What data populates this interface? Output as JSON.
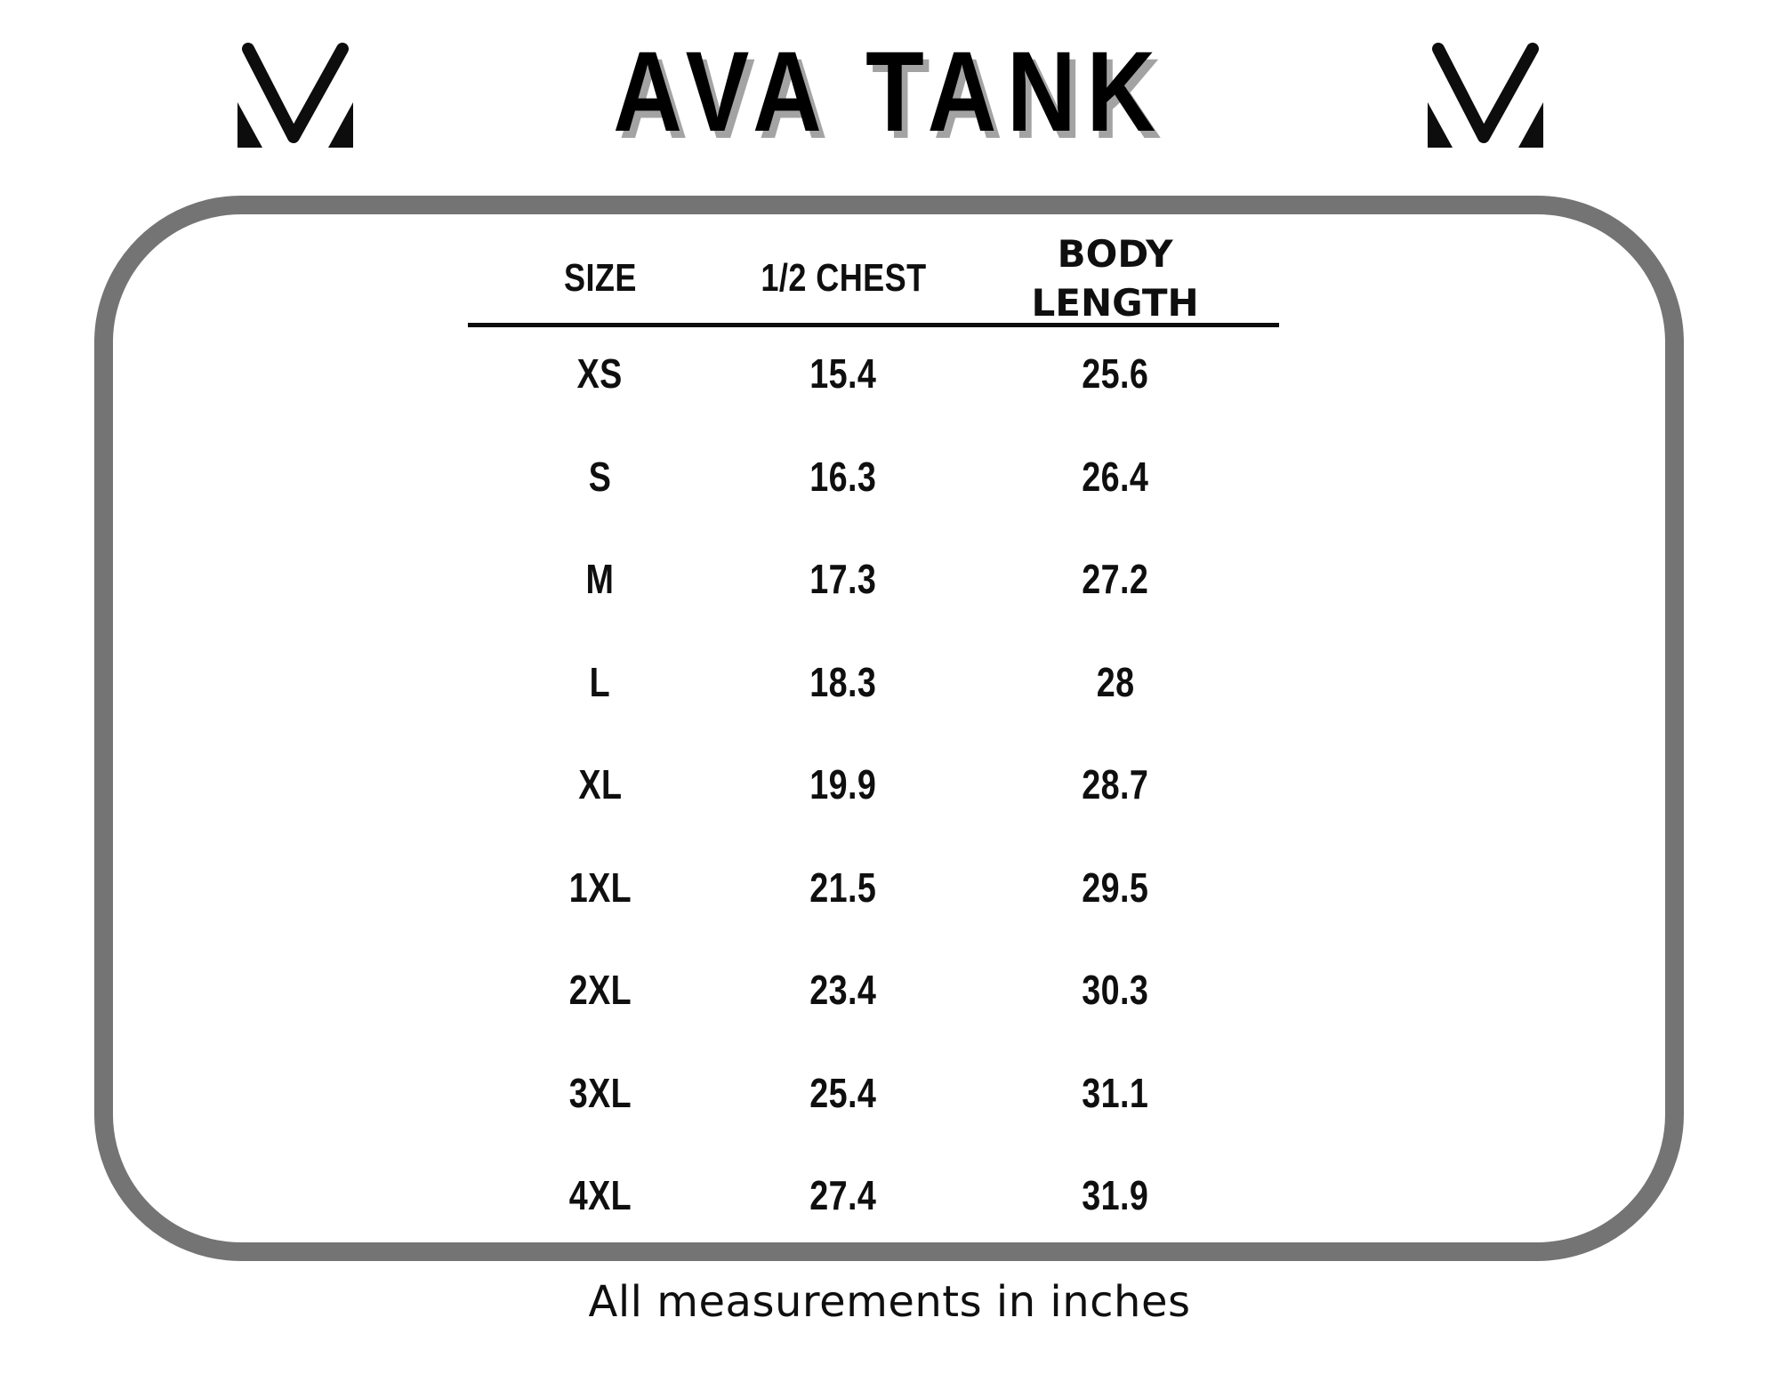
{
  "header": {
    "title": "AVA TANK",
    "logo_icon": "m-mark-icon"
  },
  "size_chart": {
    "columns": [
      "SIZE",
      "1/2 CHEST",
      "BODY LENGTH"
    ],
    "rows": [
      {
        "size": "XS",
        "half_chest": "15.4",
        "body_length": "25.6"
      },
      {
        "size": "S",
        "half_chest": "16.3",
        "body_length": "26.4"
      },
      {
        "size": "M",
        "half_chest": "17.3",
        "body_length": "27.2"
      },
      {
        "size": "L",
        "half_chest": "18.3",
        "body_length": "28"
      },
      {
        "size": "XL",
        "half_chest": "19.9",
        "body_length": "28.7"
      },
      {
        "size": "1XL",
        "half_chest": "21.5",
        "body_length": "29.5"
      },
      {
        "size": "2XL",
        "half_chest": "23.4",
        "body_length": "30.3"
      },
      {
        "size": "3XL",
        "half_chest": "25.4",
        "body_length": "31.1"
      },
      {
        "size": "4XL",
        "half_chest": "27.4",
        "body_length": "31.9"
      }
    ]
  },
  "footer": {
    "note": "All measurements in inches"
  },
  "colors": {
    "frame_border": "#747474",
    "title_shadow": "#a3a3a3",
    "text": "#0f0f0f"
  }
}
